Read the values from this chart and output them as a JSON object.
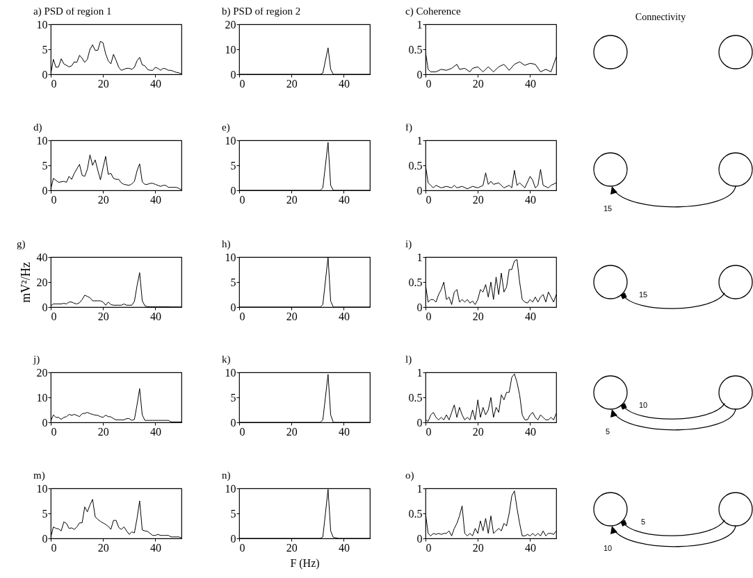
{
  "chart_data": [
    {
      "type": "line",
      "title": "a) PSD of region 1",
      "color": "#000000",
      "xlim": [
        0,
        50
      ],
      "xticks": [
        0,
        20,
        40
      ],
      "ylim": [
        0,
        10
      ],
      "yticks": [
        0,
        5,
        10
      ],
      "x": [
        0,
        1,
        2,
        3,
        4,
        5,
        6,
        7,
        8,
        9,
        10,
        11,
        12,
        13,
        14,
        15,
        16,
        17,
        18,
        19,
        20,
        21,
        22,
        23,
        24,
        25,
        26,
        27,
        28,
        29,
        30,
        31,
        32,
        33,
        34,
        35,
        36,
        37,
        38,
        39,
        40,
        41,
        42,
        43,
        44,
        45,
        46,
        47,
        48,
        49,
        50
      ],
      "values": [
        0,
        3.0,
        1.4,
        1.5,
        3.1,
        2.1,
        1.8,
        1.5,
        1.7,
        2.5,
        2.4,
        3.8,
        3.2,
        2.4,
        3.0,
        5.0,
        5.9,
        4.8,
        4.8,
        6.6,
        6.3,
        4.1,
        2.7,
        2.1,
        4.0,
        2.8,
        1.4,
        0.8,
        1.0,
        1.2,
        1.2,
        1.0,
        1.4,
        2.7,
        3.4,
        1.9,
        1.7,
        1.0,
        0.8,
        0.8,
        1.4,
        1.2,
        0.8,
        1.2,
        1.1,
        0.8,
        0.8,
        0.6,
        0.4,
        0.3,
        0.1
      ]
    },
    {
      "type": "line",
      "title": "b) PSD of region 2",
      "color": "#000000",
      "xlim": [
        0,
        50
      ],
      "xticks": [
        0,
        20,
        40
      ],
      "ylim": [
        0,
        20
      ],
      "yticks": [
        0,
        10,
        20
      ],
      "x": [
        0,
        31,
        32,
        34,
        35,
        36,
        50
      ],
      "values": [
        0,
        0,
        0.5,
        10.6,
        2,
        0,
        0
      ]
    },
    {
      "type": "line",
      "title": "c) Coherence",
      "color": "#000000",
      "xlim": [
        0,
        50
      ],
      "xticks": [
        0,
        20,
        40
      ],
      "ylim": [
        0,
        1
      ],
      "yticks": [
        0,
        0.5,
        1
      ],
      "x": [
        0,
        1,
        2,
        4,
        6,
        8,
        10,
        12,
        13,
        15,
        17,
        18,
        20,
        22,
        24,
        26,
        28,
        30,
        32,
        34,
        36,
        38,
        40,
        42,
        44,
        46,
        48,
        50
      ],
      "values": [
        0.45,
        0.1,
        0.05,
        0.05,
        0.1,
        0.08,
        0.12,
        0.2,
        0.1,
        0.12,
        0.05,
        0.12,
        0.15,
        0.05,
        0.15,
        0.05,
        0.15,
        0.2,
        0.08,
        0.2,
        0.25,
        0.18,
        0.22,
        0.2,
        0.05,
        0.1,
        0.05,
        0.35
      ]
    },
    {
      "type": "other",
      "title": "Connectivity"
    },
    {
      "type": "line",
      "title": "d)",
      "color": "#000000",
      "xlim": [
        0,
        50
      ],
      "xticks": [
        0,
        20,
        40
      ],
      "ylim": [
        0,
        10
      ],
      "yticks": [
        0,
        5,
        10
      ],
      "x": [
        0,
        1,
        2,
        3,
        4,
        5,
        6,
        7,
        8,
        9,
        10,
        11,
        12,
        13,
        14,
        15,
        16,
        17,
        18,
        19,
        20,
        21,
        22,
        23,
        24,
        25,
        26,
        27,
        28,
        29,
        30,
        31,
        32,
        33,
        34,
        35,
        36,
        37,
        38,
        39,
        40,
        41,
        42,
        43,
        44,
        45,
        46,
        47,
        48,
        49,
        50
      ],
      "values": [
        0.2,
        2.4,
        2.0,
        1.6,
        1.7,
        1.8,
        1.6,
        2.8,
        2.2,
        3.4,
        4.3,
        5.2,
        3.0,
        2.8,
        4.2,
        7.1,
        5.0,
        6.1,
        4.0,
        2.1,
        4.5,
        6.8,
        3.2,
        3.4,
        2.4,
        2.2,
        2.2,
        1.5,
        1.2,
        1.1,
        1.0,
        1.3,
        1.8,
        3.9,
        5.3,
        1.7,
        1.2,
        1.2,
        1.4,
        1.4,
        1.2,
        1.0,
        0.8,
        1.0,
        1.0,
        0.6,
        0.6,
        0.6,
        0.6,
        0.4,
        0.1
      ]
    },
    {
      "type": "line",
      "title": "e)",
      "color": "#000000",
      "xlim": [
        0,
        50
      ],
      "xticks": [
        0,
        20,
        40
      ],
      "ylim": [
        0,
        10
      ],
      "yticks": [
        0,
        5,
        10
      ],
      "x": [
        0,
        31,
        32,
        34,
        35,
        36,
        50
      ],
      "values": [
        0,
        0,
        0.5,
        9.6,
        1.0,
        0,
        0
      ]
    },
    {
      "type": "line",
      "title": "f)",
      "color": "#000000",
      "xlim": [
        0,
        50
      ],
      "xticks": [
        0,
        20,
        40
      ],
      "ylim": [
        0,
        1
      ],
      "yticks": [
        0,
        0.5,
        1
      ],
      "x": [
        0,
        1,
        2,
        3,
        4,
        6,
        8,
        10,
        11,
        12,
        14,
        16,
        18,
        20,
        22,
        23,
        24,
        25,
        26,
        28,
        30,
        32,
        33,
        34,
        35,
        36,
        38,
        40,
        41,
        42,
        43,
        44,
        45,
        47,
        48,
        50
      ],
      "values": [
        0.5,
        0.15,
        0.1,
        0.05,
        0.1,
        0.05,
        0.08,
        0.05,
        0.1,
        0.05,
        0.08,
        0.03,
        0.08,
        0.05,
        0.1,
        0.35,
        0.12,
        0.18,
        0.12,
        0.15,
        0.05,
        0.1,
        0.05,
        0.4,
        0.1,
        0.15,
        0.05,
        0.28,
        0.2,
        0.05,
        0.1,
        0.42,
        0.1,
        0.05,
        0.1,
        0.15
      ]
    },
    {
      "type": "other",
      "annotations": [
        "15"
      ]
    },
    {
      "type": "line",
      "title": "g)",
      "ylabel": "mV²/Hz",
      "color": "#000000",
      "xlim": [
        0,
        50
      ],
      "xticks": [
        0,
        20,
        40
      ],
      "ylim": [
        0,
        40
      ],
      "yticks": [
        0,
        20,
        40
      ],
      "x": [
        0,
        1,
        2,
        3,
        4,
        5,
        6,
        7,
        8,
        9,
        10,
        11,
        12,
        13,
        14,
        15,
        16,
        17,
        18,
        19,
        20,
        21,
        22,
        23,
        24,
        25,
        26,
        27,
        28,
        29,
        30,
        31,
        32,
        33,
        34,
        35,
        36,
        37,
        38,
        39,
        40,
        41,
        42,
        43,
        44,
        45,
        46,
        47,
        48,
        49,
        50
      ],
      "values": [
        1,
        2.5,
        2.5,
        2.5,
        2.5,
        3,
        2.5,
        4,
        4,
        3,
        2.5,
        3.5,
        6,
        9.5,
        8.5,
        7.5,
        5,
        5,
        5,
        5,
        4,
        1.5,
        4,
        2,
        1.5,
        1.5,
        1.5,
        1.5,
        2.5,
        1.5,
        1.5,
        1.5,
        4.5,
        17,
        27.5,
        5,
        1,
        0.3,
        0.2,
        0.2,
        0.2,
        0.2,
        0.2,
        0.2,
        0.2,
        0.2,
        0.1,
        0.1,
        0.1,
        0.1,
        0.1
      ]
    },
    {
      "type": "line",
      "title": "h)",
      "color": "#000000",
      "xlim": [
        0,
        50
      ],
      "xticks": [
        0,
        20,
        40
      ],
      "ylim": [
        0,
        10
      ],
      "yticks": [
        0,
        5,
        10
      ],
      "x": [
        0,
        31,
        32,
        34,
        35,
        36,
        50
      ],
      "values": [
        0,
        0,
        0.5,
        10,
        1.2,
        0,
        0
      ]
    },
    {
      "type": "line",
      "title": "i)",
      "color": "#000000",
      "xlim": [
        0,
        50
      ],
      "xticks": [
        0,
        20,
        40
      ],
      "ylim": [
        0,
        1
      ],
      "yticks": [
        0,
        0.5,
        1
      ],
      "x": [
        0,
        1,
        2,
        3,
        4,
        5,
        6,
        7,
        8,
        9,
        10,
        11,
        12,
        13,
        14,
        15,
        16,
        17,
        18,
        19,
        20,
        21,
        22,
        23,
        24,
        25,
        26,
        27,
        28,
        29,
        30,
        31,
        32,
        33,
        34,
        35,
        36,
        37,
        38,
        39,
        40,
        41,
        42,
        43,
        44,
        45,
        46,
        47,
        48,
        49,
        50
      ],
      "values": [
        0.45,
        0.1,
        0.15,
        0.15,
        0.1,
        0.25,
        0.35,
        0.5,
        0.15,
        0.2,
        0.05,
        0.3,
        0.35,
        0.1,
        0.15,
        0.1,
        0.15,
        0.08,
        0.12,
        0.05,
        0.15,
        0.35,
        0.3,
        0.45,
        0.2,
        0.5,
        0.15,
        0.6,
        0.25,
        0.68,
        0.3,
        0.4,
        0.75,
        0.75,
        0.92,
        0.95,
        0.5,
        0.15,
        0.1,
        0.08,
        0.15,
        0.1,
        0.2,
        0.1,
        0.2,
        0.25,
        0.1,
        0.3,
        0.2,
        0.1,
        0.25
      ]
    },
    {
      "type": "other",
      "annotations": [
        "15"
      ]
    },
    {
      "type": "line",
      "title": "j)",
      "color": "#000000",
      "xlim": [
        0,
        50
      ],
      "xticks": [
        0,
        20,
        40
      ],
      "ylim": [
        0,
        20
      ],
      "yticks": [
        0,
        10,
        20
      ],
      "x": [
        0,
        1,
        2,
        3,
        4,
        5,
        6,
        7,
        8,
        9,
        10,
        11,
        12,
        13,
        14,
        15,
        16,
        17,
        18,
        19,
        20,
        21,
        22,
        23,
        24,
        25,
        26,
        27,
        28,
        29,
        30,
        31,
        32,
        33,
        34,
        35,
        36,
        37,
        38,
        39,
        40,
        41,
        42,
        43,
        44,
        45,
        46,
        47,
        48,
        49,
        50
      ],
      "values": [
        0.5,
        3,
        2,
        2,
        1.2,
        2,
        2.3,
        3.2,
        2.8,
        3.2,
        2.8,
        2.3,
        3.5,
        3.6,
        4,
        3.5,
        3.2,
        2.9,
        2.8,
        2.3,
        2,
        2.9,
        2.3,
        2.2,
        1.5,
        1,
        1,
        1,
        1,
        1.5,
        1.5,
        0.8,
        1.2,
        7,
        13.5,
        3,
        0.8,
        0.8,
        0.8,
        0.8,
        0.8,
        0.8,
        0.8,
        0.8,
        0.8,
        0.8,
        0.2,
        0.2,
        0.2,
        0.2,
        0.2
      ]
    },
    {
      "type": "line",
      "title": "k)",
      "color": "#000000",
      "xlim": [
        0,
        50
      ],
      "xticks": [
        0,
        20,
        40
      ],
      "ylim": [
        0,
        10
      ],
      "yticks": [
        0,
        5,
        10
      ],
      "x": [
        0,
        31,
        32,
        34,
        35,
        36,
        50
      ],
      "values": [
        0,
        0,
        0.5,
        9.6,
        1.5,
        0,
        0
      ]
    },
    {
      "type": "line",
      "title": "l)",
      "color": "#000000",
      "xlim": [
        0,
        50
      ],
      "xticks": [
        0,
        20,
        40
      ],
      "ylim": [
        0,
        1
      ],
      "yticks": [
        0,
        0.5,
        1
      ],
      "x": [
        0,
        1,
        2,
        3,
        4,
        5,
        6,
        7,
        8,
        9,
        10,
        11,
        12,
        13,
        14,
        15,
        16,
        17,
        18,
        19,
        20,
        21,
        22,
        23,
        24,
        25,
        26,
        27,
        28,
        29,
        30,
        31,
        32,
        33,
        34,
        35,
        36,
        37,
        38,
        39,
        40,
        41,
        42,
        43,
        44,
        45,
        46,
        47,
        48,
        49,
        50
      ],
      "values": [
        0.05,
        0.02,
        0.15,
        0.2,
        0.1,
        0.05,
        0.1,
        0.05,
        0.15,
        0.05,
        0.2,
        0.35,
        0.1,
        0.3,
        0.15,
        0.05,
        0.1,
        0.05,
        0.25,
        0.05,
        0.45,
        0.1,
        0.3,
        0.15,
        0.25,
        0.5,
        0.1,
        0.3,
        0.2,
        0.55,
        0.45,
        0.6,
        0.6,
        0.9,
        0.97,
        0.8,
        0.55,
        0.15,
        0.05,
        0.05,
        0.15,
        0.2,
        0.1,
        0.05,
        0.15,
        0.1,
        0.05,
        0.05,
        0.1,
        0.05,
        0.18
      ]
    },
    {
      "type": "other",
      "annotations": [
        "10",
        "5"
      ]
    },
    {
      "type": "line",
      "title": "m)",
      "color": "#000000",
      "xlim": [
        0,
        50
      ],
      "xticks": [
        0,
        20,
        40
      ],
      "ylim": [
        0,
        10
      ],
      "yticks": [
        0,
        5,
        10
      ],
      "x": [
        0,
        1,
        2,
        3,
        4,
        5,
        6,
        7,
        8,
        9,
        10,
        11,
        12,
        13,
        14,
        15,
        16,
        17,
        18,
        19,
        20,
        21,
        22,
        23,
        24,
        25,
        26,
        27,
        28,
        29,
        30,
        31,
        32,
        33,
        34,
        35,
        36,
        37,
        38,
        39,
        40,
        41,
        42,
        43,
        44,
        45,
        46,
        47,
        48,
        49,
        50
      ],
      "values": [
        0.2,
        2.3,
        2,
        1.9,
        1.5,
        3.3,
        3,
        2,
        2.1,
        1.8,
        2.3,
        3.1,
        3.1,
        6.3,
        5.3,
        6.7,
        7.8,
        4.3,
        3.8,
        3.4,
        3.1,
        2.8,
        2.4,
        1.8,
        3.6,
        3.6,
        2.2,
        1.8,
        2.3,
        1.5,
        0.8,
        1.3,
        1.1,
        4,
        7.5,
        1.7,
        1.5,
        1.4,
        1,
        0.6,
        0.6,
        0.8,
        0.6,
        0.6,
        0.6,
        0.6,
        0.3,
        0.3,
        0.3,
        0.3,
        0.1
      ]
    },
    {
      "type": "line",
      "title": "n)",
      "xlabel": "F (Hz)",
      "color": "#000000",
      "xlim": [
        0,
        50
      ],
      "xticks": [
        0,
        20,
        40
      ],
      "ylim": [
        0,
        10
      ],
      "yticks": [
        0,
        5,
        10
      ],
      "x": [
        0,
        31,
        32,
        34,
        35,
        36,
        38,
        50
      ],
      "values": [
        0,
        0,
        0.3,
        9.8,
        1.5,
        0.2,
        0,
        0
      ]
    },
    {
      "type": "line",
      "title": "o)",
      "color": "#000000",
      "xlim": [
        0,
        50
      ],
      "xticks": [
        0,
        20,
        40
      ],
      "ylim": [
        0,
        1
      ],
      "yticks": [
        0,
        0.5,
        1
      ],
      "x": [
        0,
        1,
        2,
        3,
        4,
        5,
        6,
        7,
        8,
        9,
        10,
        11,
        12,
        13,
        14,
        15,
        16,
        17,
        18,
        19,
        20,
        21,
        22,
        23,
        24,
        25,
        26,
        27,
        28,
        29,
        30,
        31,
        32,
        33,
        34,
        35,
        36,
        37,
        38,
        39,
        40,
        41,
        42,
        43,
        44,
        45,
        46,
        47,
        48,
        49,
        50
      ],
      "values": [
        0.5,
        0.1,
        0.05,
        0.1,
        0.08,
        0.1,
        0.08,
        0.1,
        0.1,
        0.15,
        0.05,
        0.2,
        0.3,
        0.45,
        0.65,
        0.1,
        0.05,
        0.1,
        0.05,
        0.2,
        0.1,
        0.35,
        0.15,
        0.4,
        0.1,
        0.45,
        0.1,
        0.15,
        0.2,
        0.15,
        0.3,
        0.25,
        0.5,
        0.85,
        0.95,
        0.6,
        0.3,
        0.05,
        0.05,
        0.08,
        0.05,
        0.1,
        0.05,
        0.1,
        0.05,
        0.15,
        0.05,
        0.1,
        0.1,
        0.08,
        0.15
      ]
    },
    {
      "type": "other",
      "annotations": [
        "5",
        "10"
      ]
    }
  ]
}
